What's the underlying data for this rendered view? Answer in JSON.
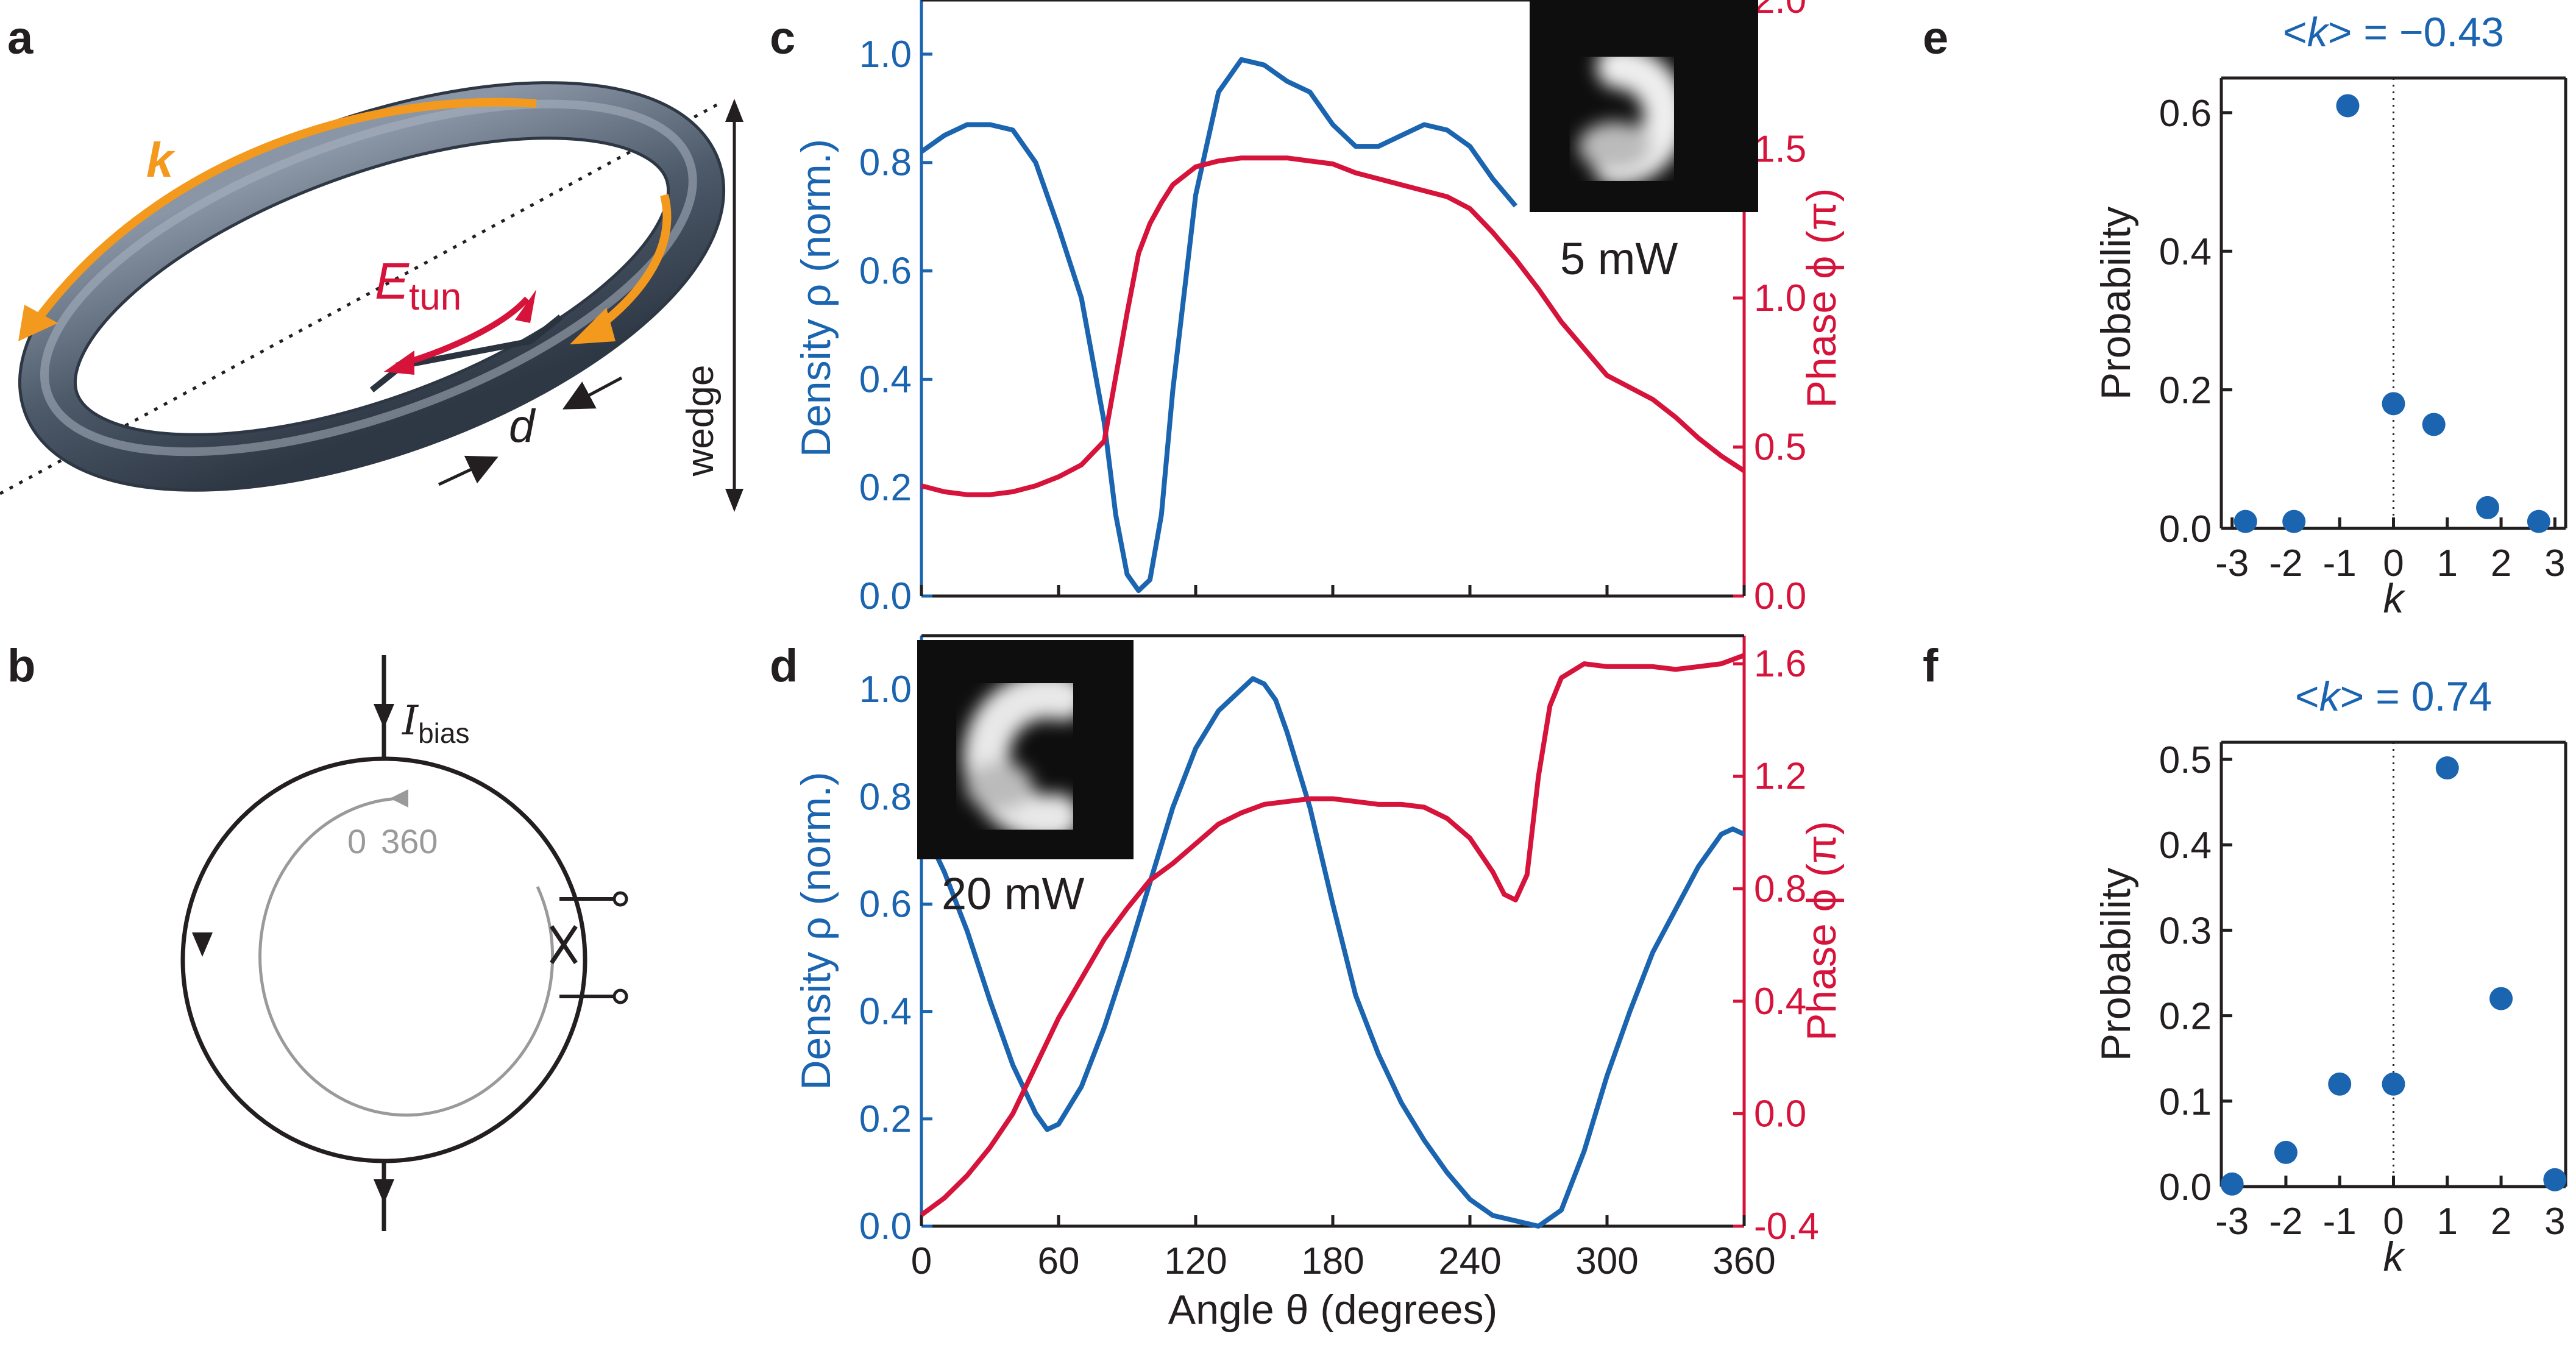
{
  "panels": {
    "a": "a",
    "b": "b",
    "c": "c",
    "d": "d",
    "e": "e",
    "f": "f"
  },
  "colors": {
    "density": "#1a64b0",
    "phase": "#d6133a",
    "orange": "#f39a1e",
    "ring": "#4d5a6a",
    "text": "#231f20",
    "gray": "#9a9a9a"
  },
  "panel_a": {
    "k_label": "k",
    "e_label": "E",
    "e_sub": "tun",
    "d_label": "d",
    "wedge_label": "wedge"
  },
  "panel_b": {
    "i_label": "I",
    "i_sub": "bias",
    "angle_start": "0",
    "angle_end": "360"
  },
  "chart_data": [
    {
      "id": "c",
      "type": "line",
      "xlim": [
        0,
        360
      ],
      "y_left": {
        "label": "Density ρ (norm.)",
        "lim": [
          0,
          1.1
        ],
        "ticks": [
          "0.0",
          "0.2",
          "0.4",
          "0.6",
          "0.8",
          "1.0"
        ]
      },
      "y_right": {
        "label": "Phase ϕ (π)",
        "lim": [
          0,
          2.0
        ],
        "ticks": [
          "0.0",
          "0.5",
          "1.0",
          "1.5",
          "2.0"
        ]
      },
      "inset_label": "5 mW",
      "series": [
        {
          "axis": "left",
          "x": [
            0,
            10,
            20,
            30,
            40,
            50,
            60,
            70,
            80,
            85,
            90,
            95,
            100,
            105,
            110,
            120,
            130,
            140,
            150,
            160,
            170,
            180,
            190,
            200,
            210,
            220,
            230,
            240,
            250,
            260
          ],
          "y": [
            0.82,
            0.85,
            0.87,
            0.87,
            0.86,
            0.8,
            0.68,
            0.55,
            0.32,
            0.15,
            0.04,
            0.01,
            0.03,
            0.15,
            0.38,
            0.74,
            0.93,
            0.99,
            0.98,
            0.95,
            0.93,
            0.87,
            0.83,
            0.83,
            0.85,
            0.87,
            0.86,
            0.83,
            0.77,
            0.72
          ]
        },
        {
          "axis": "right",
          "x": [
            0,
            10,
            20,
            30,
            40,
            50,
            60,
            70,
            80,
            90,
            95,
            100,
            105,
            110,
            120,
            130,
            140,
            150,
            160,
            170,
            180,
            190,
            200,
            210,
            220,
            230,
            240,
            250,
            260,
            270,
            280,
            290,
            300,
            310,
            320,
            330,
            340,
            350,
            360
          ],
          "y": [
            0.37,
            0.35,
            0.34,
            0.34,
            0.35,
            0.37,
            0.4,
            0.44,
            0.52,
            0.95,
            1.15,
            1.25,
            1.32,
            1.38,
            1.44,
            1.46,
            1.47,
            1.47,
            1.47,
            1.46,
            1.45,
            1.42,
            1.4,
            1.38,
            1.36,
            1.34,
            1.3,
            1.22,
            1.13,
            1.03,
            0.92,
            0.83,
            0.74,
            0.7,
            0.66,
            0.6,
            0.53,
            0.47,
            0.42
          ]
        }
      ]
    },
    {
      "id": "d",
      "type": "line",
      "xlim": [
        0,
        360
      ],
      "xticks": [
        "0",
        "60",
        "120",
        "180",
        "240",
        "300",
        "360"
      ],
      "xlabel": "Angle θ (degrees)",
      "y_left": {
        "label": "Density ρ (norm.)",
        "lim": [
          0,
          1.1
        ],
        "ticks": [
          "0.0",
          "0.2",
          "0.4",
          "0.6",
          "0.8",
          "1.0"
        ]
      },
      "y_right": {
        "label": "Phase ϕ (π)",
        "lim": [
          -0.4,
          1.7
        ],
        "ticks": [
          "-0.4",
          "0.0",
          "0.4",
          "0.8",
          "1.2",
          "1.6"
        ]
      },
      "inset_label": "20 mW",
      "series": [
        {
          "axis": "left",
          "x": [
            0,
            10,
            20,
            30,
            40,
            50,
            55,
            60,
            70,
            80,
            90,
            100,
            110,
            120,
            130,
            140,
            145,
            150,
            155,
            160,
            170,
            180,
            190,
            200,
            210,
            220,
            230,
            240,
            250,
            260,
            270,
            280,
            290,
            300,
            310,
            320,
            330,
            340,
            350,
            355,
            360
          ],
          "y": [
            0.75,
            0.66,
            0.55,
            0.42,
            0.3,
            0.21,
            0.18,
            0.19,
            0.26,
            0.37,
            0.5,
            0.64,
            0.78,
            0.89,
            0.96,
            1.0,
            1.02,
            1.01,
            0.98,
            0.92,
            0.78,
            0.6,
            0.43,
            0.32,
            0.23,
            0.16,
            0.1,
            0.05,
            0.02,
            0.01,
            0.0,
            0.03,
            0.14,
            0.28,
            0.4,
            0.51,
            0.59,
            0.67,
            0.73,
            0.74,
            0.73
          ]
        },
        {
          "axis": "right",
          "x": [
            0,
            10,
            20,
            30,
            40,
            50,
            60,
            70,
            80,
            90,
            100,
            110,
            120,
            130,
            140,
            150,
            160,
            170,
            180,
            190,
            200,
            210,
            220,
            230,
            240,
            250,
            255,
            260,
            265,
            270,
            275,
            280,
            290,
            300,
            310,
            320,
            330,
            340,
            350,
            360
          ],
          "y": [
            -0.36,
            -0.3,
            -0.22,
            -0.12,
            0.0,
            0.17,
            0.34,
            0.48,
            0.62,
            0.73,
            0.83,
            0.89,
            0.96,
            1.03,
            1.07,
            1.1,
            1.11,
            1.12,
            1.12,
            1.11,
            1.1,
            1.1,
            1.09,
            1.05,
            0.98,
            0.86,
            0.78,
            0.76,
            0.85,
            1.2,
            1.45,
            1.55,
            1.6,
            1.59,
            1.59,
            1.59,
            1.58,
            1.59,
            1.6,
            1.63
          ]
        }
      ]
    },
    {
      "id": "e",
      "type": "scatter",
      "title_prefix": "<",
      "title_var": "k",
      "title_suffix": "> = −0.43",
      "xlabel": "k",
      "ylabel": "Probability",
      "xlim": [
        -3.2,
        3.2
      ],
      "ylim": [
        0,
        0.65
      ],
      "xticks": [
        "-3",
        "-2",
        "-1",
        "0",
        "1",
        "2",
        "3"
      ],
      "yticks": [
        "0.0",
        "0.2",
        "0.4",
        "0.6"
      ],
      "points": {
        "x": [
          -2.75,
          -1.85,
          -0.85,
          0.0,
          0.75,
          1.75,
          2.7
        ],
        "y": [
          0.01,
          0.01,
          0.61,
          0.18,
          0.15,
          0.03,
          0.01
        ]
      }
    },
    {
      "id": "f",
      "type": "scatter",
      "title_prefix": "<",
      "title_var": "k",
      "title_suffix": "> = 0.74",
      "xlabel": "k",
      "ylabel": "Probability",
      "xlim": [
        -3.2,
        3.2
      ],
      "ylim": [
        0,
        0.52
      ],
      "xticks": [
        "-3",
        "-2",
        "-1",
        "0",
        "1",
        "2",
        "3"
      ],
      "yticks": [
        "0.0",
        "0.1",
        "0.2",
        "0.3",
        "0.4",
        "0.5"
      ],
      "points": {
        "x": [
          -3,
          -2,
          -1,
          0,
          1,
          2,
          3
        ],
        "y": [
          0.003,
          0.04,
          0.12,
          0.12,
          0.49,
          0.22,
          0.008
        ]
      }
    }
  ]
}
